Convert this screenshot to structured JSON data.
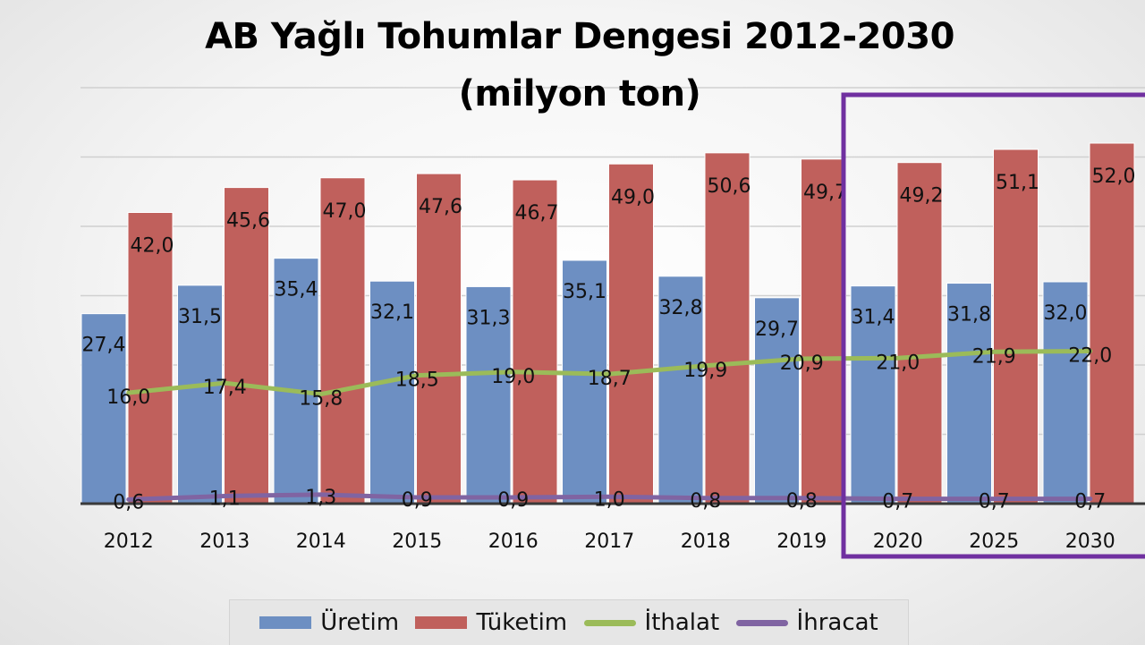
{
  "title_line_1": "AB Yağlı Tohumlar Dengesi 2012-2030",
  "title_line_2": "(milyon ton)",
  "colors": {
    "uretim": "#6d8fc2",
    "tuketim": "#c0605c",
    "ithalat": "#9bbb59",
    "ihracat": "#8064a2",
    "highlight": "#7030a0",
    "axis": "#3a3a3a",
    "grid": "#d0d0d0"
  },
  "chart_data": {
    "type": "bar",
    "title": "AB Yağlı Tohumlar Dengesi 2012-2030 (milyon ton)",
    "categories": [
      "2012",
      "2013",
      "2014",
      "2015",
      "2016",
      "2017",
      "2018",
      "2019",
      "2020",
      "2025",
      "2030"
    ],
    "ylim": [
      0,
      60
    ],
    "grid": true,
    "legend_placement": "bottom",
    "series": [
      {
        "name": "Üretim",
        "kind": "bar",
        "values": [
          27.4,
          31.5,
          35.4,
          32.1,
          31.3,
          35.1,
          32.8,
          29.7,
          31.4,
          31.8,
          32.0
        ],
        "labels": [
          "27,4",
          "31,5",
          "35,4",
          "32,1",
          "31,3",
          "35,1",
          "32,8",
          "29,7",
          "31,4",
          "31,8",
          "32,0"
        ]
      },
      {
        "name": "Tüketim",
        "kind": "bar",
        "values": [
          42.0,
          45.6,
          47.0,
          47.6,
          46.7,
          49.0,
          50.6,
          49.7,
          49.2,
          51.1,
          52.0
        ],
        "labels": [
          "42,0",
          "45,6",
          "47,0",
          "47,6",
          "46,7",
          "49,0",
          "50,6",
          "49,7",
          "49,2",
          "51,1",
          "52,0"
        ]
      },
      {
        "name": "İthalat",
        "kind": "line",
        "values": [
          16.0,
          17.4,
          15.8,
          18.5,
          19.0,
          18.7,
          19.9,
          20.9,
          21.0,
          21.9,
          22.0
        ],
        "labels": [
          "16,0",
          "17,4",
          "15,8",
          "18,5",
          "19,0",
          "18,7",
          "19,9",
          "20,9",
          "21,0",
          "21,9",
          "22,0"
        ]
      },
      {
        "name": "İhracat",
        "kind": "line",
        "values": [
          0.6,
          1.1,
          1.3,
          0.9,
          0.9,
          1.0,
          0.8,
          0.8,
          0.7,
          0.7,
          0.7
        ],
        "labels": [
          "0,6",
          "1,1",
          "1,3",
          "0,9",
          "0,9",
          "1,0",
          "0,8",
          "0,8",
          "0,7",
          "0,7",
          "0,7"
        ]
      }
    ],
    "annotation": "frame highlighting 2020-2030 projections"
  },
  "legend": [
    {
      "label": "Üretim",
      "kind": "bar",
      "color": "#6d8fc2"
    },
    {
      "label": "Tüketim",
      "kind": "bar",
      "color": "#c0605c"
    },
    {
      "label": "İthalat",
      "kind": "line",
      "color": "#9bbb59"
    },
    {
      "label": "İhracat",
      "kind": "line",
      "color": "#8064a2"
    }
  ]
}
